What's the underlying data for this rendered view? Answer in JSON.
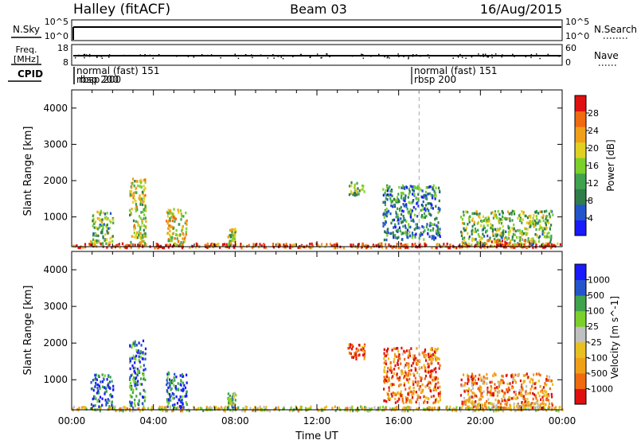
{
  "header": {
    "station": "Halley (fitACF)",
    "beam": "Beam 03",
    "date": "16/Aug/2015"
  },
  "aux_panels": {
    "nsky": {
      "left_label": "N.Sky",
      "right_label": "N.Search",
      "left_ticks": [
        "10^5",
        "10^0"
      ],
      "right_ticks": [
        "10^5",
        "10^0"
      ]
    },
    "freq": {
      "left_label_line1": "Freq.",
      "left_label_line2": "[MHz]",
      "left_ticks": [
        "18",
        "8"
      ],
      "right_label": "Nave",
      "right_ticks": [
        "60",
        "0"
      ]
    },
    "cpid": {
      "label": "CPID",
      "entries": [
        {
          "time_h": 0.1,
          "line1": "normal (fast)  151",
          "line2": "rbsp 200"
        },
        {
          "time_h": 0.1,
          "line1": "",
          "line2": "rbsp 200"
        },
        {
          "time_h": 17.0,
          "line1": "normal (fast)  151",
          "line2": "rbsp 200"
        }
      ]
    }
  },
  "colors": {
    "power": [
      "#1a1aff",
      "#2255cc",
      "#2e7d4a",
      "#3fa34d",
      "#7bd02b",
      "#e0d020",
      "#f0a018",
      "#f06a10",
      "#e01010"
    ],
    "velocity": [
      "#e01010",
      "#f06a10",
      "#f0a018",
      "#e8c020",
      "#c0c0c0",
      "#7bd02b",
      "#3fa34d",
      "#2255cc",
      "#1a1aff"
    ]
  },
  "chart_data": [
    {
      "type": "heatmap",
      "name": "power",
      "ylabel": "Slant Range [km]",
      "xlabel": "",
      "xlim": [
        0,
        24
      ],
      "ylim": [
        180,
        4500
      ],
      "yticks": [
        1000,
        2000,
        3000,
        4000
      ],
      "colorbar": {
        "label": "Power [dB]",
        "ticks": [
          "4",
          "8",
          "12",
          "16",
          "20",
          "24",
          "28"
        ],
        "range": [
          0,
          30
        ]
      },
      "clusters": [
        {
          "t": [
            0.0,
            24.0
          ],
          "r": [
            180,
            300
          ],
          "level": 0.9
        },
        {
          "t": [
            0.9,
            2.0
          ],
          "r": [
            300,
            1200
          ],
          "level": 0.45
        },
        {
          "t": [
            2.8,
            3.6
          ],
          "r": [
            300,
            2100
          ],
          "level": 0.55
        },
        {
          "t": [
            4.6,
            5.6
          ],
          "r": [
            250,
            1250
          ],
          "level": 0.6
        },
        {
          "t": [
            7.6,
            8.0
          ],
          "r": [
            250,
            700
          ],
          "level": 0.5
        },
        {
          "t": [
            13.5,
            14.3
          ],
          "r": [
            1600,
            2000
          ],
          "level": 0.45
        },
        {
          "t": [
            15.2,
            18.0
          ],
          "r": [
            400,
            1900
          ],
          "level": 0.3
        },
        {
          "t": [
            19.0,
            23.5
          ],
          "r": [
            250,
            1200
          ],
          "level": 0.45
        },
        {
          "t": [
            20.0,
            22.5
          ],
          "r": [
            200,
            400
          ],
          "level": 0.85
        }
      ]
    },
    {
      "type": "heatmap",
      "name": "velocity",
      "ylabel": "Slant Range [km]",
      "xlabel": "Time UT",
      "xlim": [
        0,
        24
      ],
      "ylim": [
        180,
        4500
      ],
      "yticks": [
        1000,
        2000,
        3000,
        4000
      ],
      "xticks": [
        "00:00",
        "04:00",
        "08:00",
        "12:00",
        "16:00",
        "20:00",
        "00:00"
      ],
      "colorbar": {
        "label": "Velocity [m s^-1]",
        "ticks": [
          "1000",
          "500",
          "100",
          "25",
          "-25",
          "-100",
          "-500",
          "-1000"
        ]
      },
      "clusters": [
        {
          "t": [
            0.0,
            24.0
          ],
          "r": [
            180,
            300
          ],
          "level": 0.45
        },
        {
          "t": [
            0.9,
            2.0
          ],
          "r": [
            300,
            1200
          ],
          "level": 0.85
        },
        {
          "t": [
            2.8,
            3.6
          ],
          "r": [
            300,
            2100
          ],
          "level": 0.8
        },
        {
          "t": [
            4.6,
            5.6
          ],
          "r": [
            250,
            1250
          ],
          "level": 0.85
        },
        {
          "t": [
            7.6,
            8.0
          ],
          "r": [
            250,
            700
          ],
          "level": 0.6
        },
        {
          "t": [
            13.5,
            14.3
          ],
          "r": [
            1600,
            2000
          ],
          "level": 0.1
        },
        {
          "t": [
            15.2,
            18.0
          ],
          "r": [
            400,
            1900
          ],
          "level": 0.2
        },
        {
          "t": [
            19.0,
            23.5
          ],
          "r": [
            250,
            1200
          ],
          "level": 0.25
        },
        {
          "t": [
            20.0,
            22.5
          ],
          "r": [
            200,
            400
          ],
          "level": 0.35
        }
      ],
      "marker_time_h": 17.0
    }
  ]
}
